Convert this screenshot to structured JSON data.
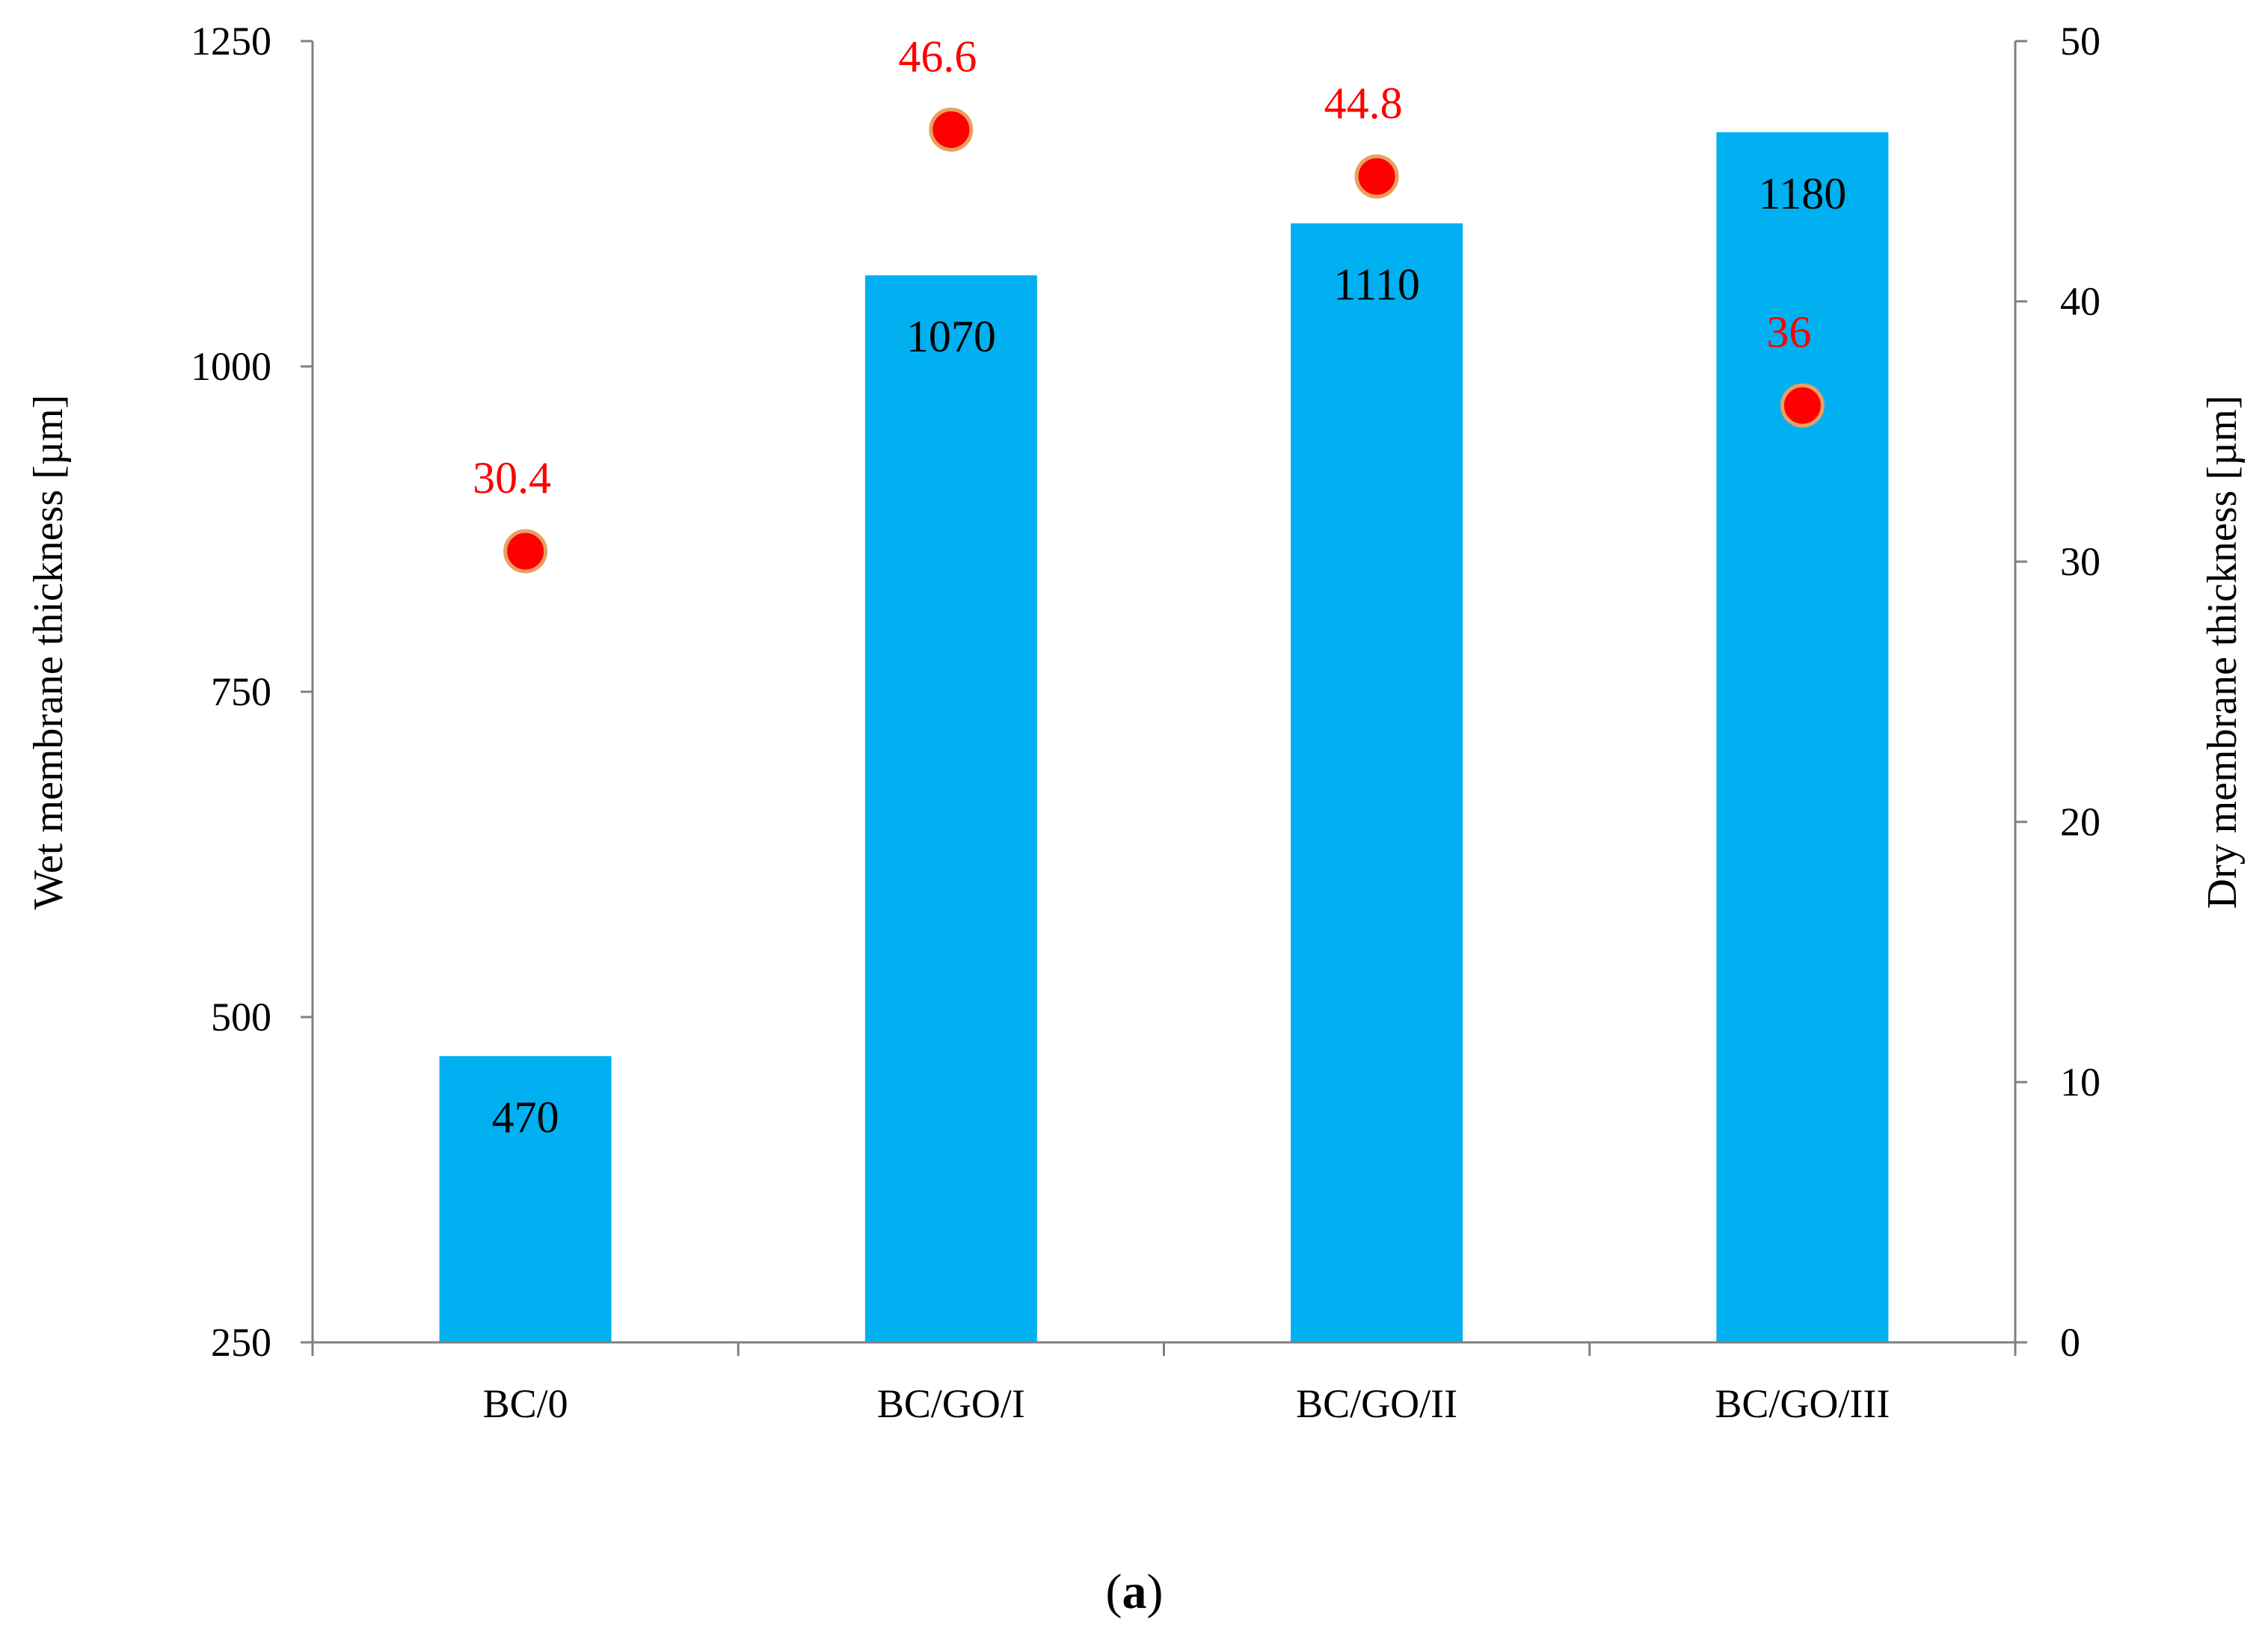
{
  "chart_data": {
    "type": "bar",
    "categories": [
      "BC/0",
      "BC/GO/I",
      "BC/GO/II",
      "BC/GO/III"
    ],
    "series": [
      {
        "type": "bar",
        "axis": "left",
        "values": [
          470,
          1070,
          1110,
          1180
        ],
        "data_labels": [
          "470",
          "1070",
          "1110",
          "1180"
        ],
        "color": "#00B0F0"
      },
      {
        "type": "scatter",
        "axis": "right",
        "values": [
          30.4,
          46.6,
          44.8,
          36
        ],
        "data_labels": [
          "30.4",
          "46.6",
          "44.8",
          "36"
        ],
        "color": "#FF0000",
        "marker_edge_color": "#E8A060",
        "label_color": "#FF0000"
      }
    ],
    "ylabel": "Wet membrane thickness [µm]",
    "ylabel_right": "Dry membrane thickness  [µm]",
    "xlabel": "",
    "title": "",
    "ylim": [
      250,
      1250
    ],
    "yticks": [
      "250",
      "500",
      "750",
      "1000",
      "1250"
    ],
    "ylim_right": [
      0,
      50
    ],
    "yticks_right": [
      "0",
      "10",
      "20",
      "30",
      "40",
      "50"
    ],
    "grid": false,
    "legend": "none",
    "panel_label": {
      "open": "(",
      "letter": "a",
      "close": ")"
    }
  }
}
